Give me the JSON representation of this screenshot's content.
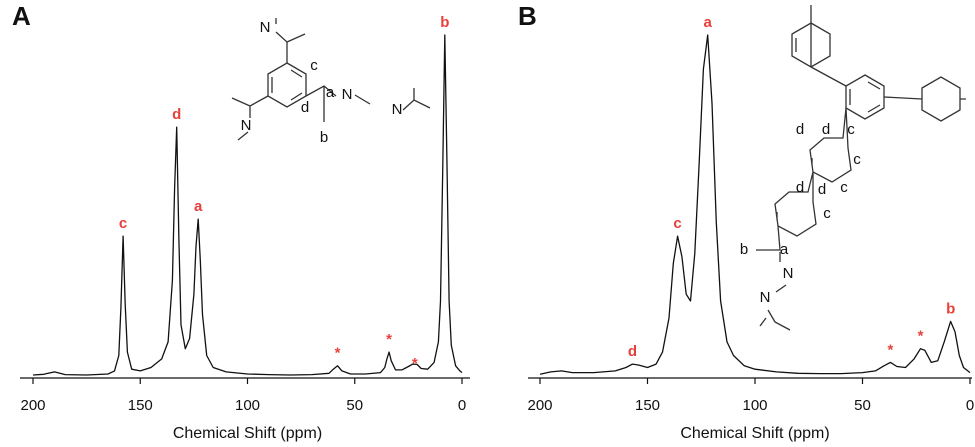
{
  "chart_data": [
    {
      "type": "line",
      "panel": "A",
      "xlabel": "Chemical Shift (ppm)",
      "color": "#111111",
      "xlim": [
        200,
        0
      ],
      "xticks": [
        200,
        150,
        100,
        50,
        0
      ],
      "ylim": [
        0,
        100
      ],
      "x": [
        200,
        195,
        190,
        185,
        175,
        165,
        162,
        160,
        159,
        158,
        157,
        156,
        154,
        150,
        145,
        140,
        137,
        135,
        134,
        133,
        132,
        131,
        129,
        127,
        125,
        124,
        123,
        122,
        121,
        119,
        116,
        110,
        100,
        90,
        80,
        70,
        62,
        60,
        58,
        56,
        52,
        45,
        38,
        36,
        35,
        34,
        33,
        31,
        28,
        25,
        23,
        21,
        19,
        16,
        13,
        11,
        10,
        9,
        8,
        7,
        6,
        5,
        3,
        1,
        0
      ],
      "values": [
        0.3,
        0.5,
        1.2,
        0.4,
        0.3,
        0.6,
        1.5,
        6,
        20,
        41,
        21,
        7,
        2,
        1.5,
        2.5,
        5,
        10,
        28,
        55,
        73,
        40,
        15,
        8,
        11,
        24,
        38,
        46,
        34,
        18,
        6,
        2.5,
        1.2,
        0.6,
        0.4,
        0.3,
        0.4,
        0.8,
        2,
        3,
        1.5,
        0.6,
        0.6,
        1,
        2.5,
        5,
        7,
        4.5,
        1.8,
        1.8,
        2.8,
        3.5,
        3.4,
        2.2,
        2,
        4,
        10,
        22,
        60,
        100,
        62,
        22,
        9,
        3,
        1.5,
        1
      ],
      "annotations": [
        {
          "text": "c",
          "x": 158
        },
        {
          "text": "d",
          "x": 133
        },
        {
          "text": "a",
          "x": 123
        },
        {
          "text": "*",
          "x": 58
        },
        {
          "text": "*",
          "x": 34
        },
        {
          "text": "*",
          "x": 22
        },
        {
          "text": "b",
          "x": 8
        }
      ],
      "structure_labels": [
        "N",
        "c",
        "a",
        "N",
        "N",
        "d",
        "b",
        "N"
      ]
    },
    {
      "type": "line",
      "panel": "B",
      "xlabel": "Chemical Shift (ppm)",
      "color": "#111111",
      "xlim": [
        200,
        0
      ],
      "xticks": [
        200,
        150,
        100,
        50,
        0
      ],
      "ylim": [
        0,
        100
      ],
      "x": [
        200,
        195,
        190,
        185,
        175,
        165,
        160,
        157,
        154,
        150,
        146,
        143,
        140,
        138,
        136,
        134,
        132,
        130,
        128,
        126,
        124,
        122,
        120,
        118,
        116,
        113,
        110,
        105,
        100,
        90,
        80,
        70,
        60,
        50,
        44,
        40,
        37,
        34,
        30,
        26,
        23,
        21,
        18,
        15,
        12,
        9,
        7,
        5,
        3,
        0
      ],
      "values": [
        0.5,
        1.2,
        1.5,
        1,
        1,
        1.5,
        2.5,
        3.5,
        3.2,
        2.5,
        3.5,
        7,
        17,
        33,
        41,
        35,
        24,
        22,
        36,
        62,
        90,
        100,
        80,
        45,
        22,
        10,
        6,
        3,
        2,
        1.2,
        0.8,
        0.7,
        0.7,
        1,
        1.5,
        3,
        4,
        2.8,
        2.5,
        5,
        8,
        7.5,
        4,
        4.5,
        10,
        16,
        13,
        6,
        2.5,
        1
      ],
      "annotations": [
        {
          "text": "d",
          "x": 157
        },
        {
          "text": "c",
          "x": 136
        },
        {
          "text": "a",
          "x": 122
        },
        {
          "text": "*",
          "x": 37
        },
        {
          "text": "*",
          "x": 23
        },
        {
          "text": "b",
          "x": 9
        }
      ],
      "structure_labels": [
        "d",
        "d",
        "c",
        "c",
        "d",
        "d",
        "c",
        "c",
        "b",
        "a",
        "N",
        "N"
      ]
    }
  ]
}
